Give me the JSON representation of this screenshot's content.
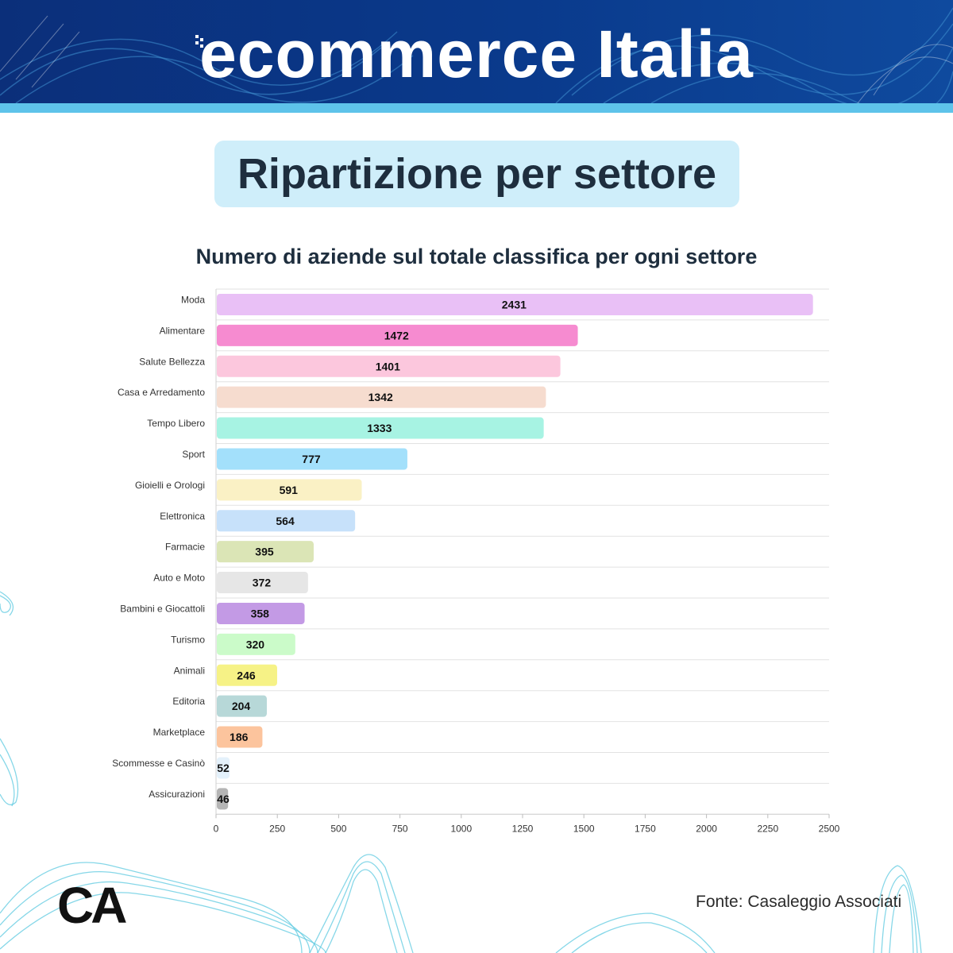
{
  "header": {
    "logo_text": "ecommerce Italia"
  },
  "page_title": "Ripartizione per settore",
  "footer": {
    "source": "Fonte: Casaleggio Associati",
    "logo": "CA"
  },
  "colors": {
    "banner": "#0b2f7a",
    "stripe": "#5ec3ea",
    "title_box": "#cfeefa",
    "deco_lines": "#5ec9e0"
  },
  "chart_data": {
    "type": "bar",
    "orientation": "horizontal",
    "title": "Numero di aziende sul totale classifica per ogni settore",
    "xlabel": "",
    "ylabel": "",
    "xlim": [
      0,
      2500
    ],
    "x_ticks": [
      0,
      250,
      500,
      750,
      1000,
      1250,
      1500,
      1750,
      2000,
      2250,
      2500
    ],
    "grid": "horizontal",
    "data_labels": true,
    "categories": [
      "Moda",
      "Alimentare",
      "Salute Bellezza",
      "Casa e Arredamento",
      "Tempo Libero",
      "Sport",
      "Gioielli e Orologi",
      "Elettronica",
      "Farmacie",
      "Auto e Moto",
      "Bambini e Giocattoli",
      "Turismo",
      "Animali",
      "Editoria",
      "Marketplace",
      "Scommesse e Casinò",
      "Assicurazioni"
    ],
    "values": [
      2431,
      1472,
      1401,
      1342,
      1333,
      777,
      591,
      564,
      395,
      372,
      358,
      320,
      246,
      204,
      186,
      52,
      46
    ],
    "bar_colors": [
      "#e9c0f6",
      "#f68bd0",
      "#fcc7dd",
      "#f6dccf",
      "#a7f3e3",
      "#a3e0fb",
      "#faf1c5",
      "#c7e1fa",
      "#dbe5b6",
      "#e6e6e6",
      "#c39ae5",
      "#cbfbc9",
      "#f6f286",
      "#b7d8d8",
      "#fcc49d",
      "#e4f1fb",
      "#b5b5b5"
    ]
  }
}
